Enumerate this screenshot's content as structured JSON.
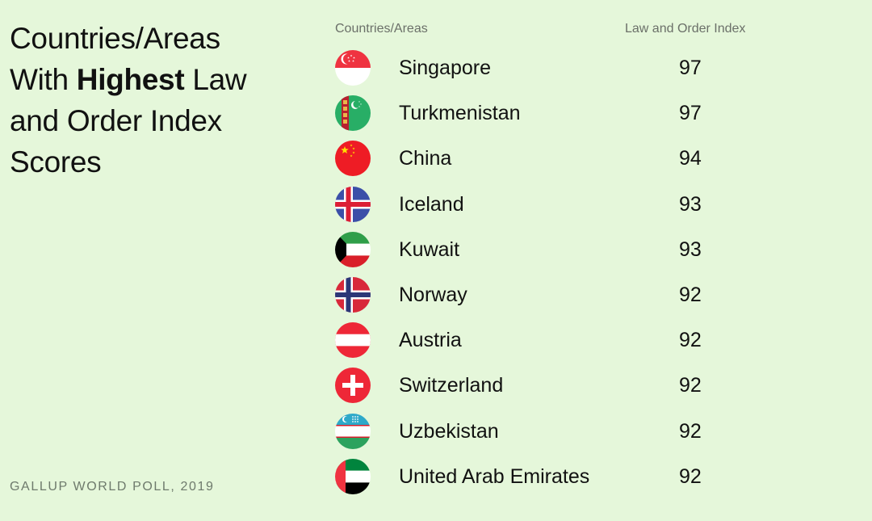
{
  "title": {
    "line1": "Countries/Areas",
    "line2_prefix": "With ",
    "line2_bold": "Highest",
    "line2_suffix": " Law",
    "line3": "and Order Index",
    "line4": "Scores"
  },
  "source": "GALLUP WORLD POLL, 2019",
  "columns": {
    "country": "Countries/Areas",
    "index": "Law and Order Index"
  },
  "chart_data": {
    "type": "table",
    "title": "Countries/Areas With Highest Law and Order Index Scores",
    "columns": [
      "Countries/Areas",
      "Law and Order Index"
    ],
    "rows": [
      {
        "country": "Singapore",
        "score": "97",
        "flag": "singapore-flag-icon"
      },
      {
        "country": "Turkmenistan",
        "score": "97",
        "flag": "turkmenistan-flag-icon"
      },
      {
        "country": "China",
        "score": "94",
        "flag": "china-flag-icon"
      },
      {
        "country": "Iceland",
        "score": "93",
        "flag": "iceland-flag-icon"
      },
      {
        "country": "Kuwait",
        "score": "93",
        "flag": "kuwait-flag-icon"
      },
      {
        "country": "Norway",
        "score": "92",
        "flag": "norway-flag-icon"
      },
      {
        "country": "Austria",
        "score": "92",
        "flag": "austria-flag-icon"
      },
      {
        "country": "Switzerland",
        "score": "92",
        "flag": "switzerland-flag-icon"
      },
      {
        "country": "Uzbekistan",
        "score": "92",
        "flag": "uzbekistan-flag-icon"
      },
      {
        "country": "United Arab Emirates",
        "score": "92",
        "flag": "uae-flag-icon"
      }
    ],
    "source": "GALLUP WORLD POLL, 2019"
  },
  "colors": {
    "background": "#e5f7da",
    "text": "#111111",
    "muted": "#6b7069"
  }
}
